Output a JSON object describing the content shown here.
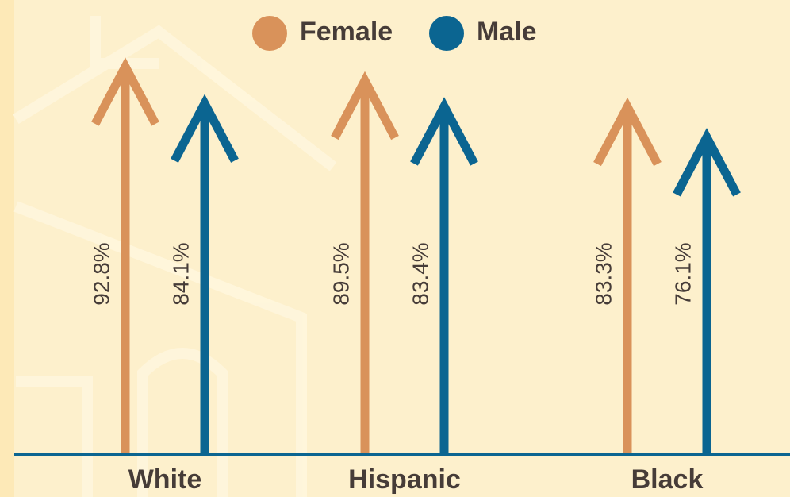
{
  "chart_data": {
    "type": "arrow-bar",
    "categories": [
      "White",
      "Hispanic",
      "Black"
    ],
    "series": [
      {
        "name": "Female",
        "color": "#d9925a",
        "values": [
          92.8,
          89.5,
          83.3
        ],
        "value_labels": [
          "92.8%",
          "89.5%",
          "83.3%"
        ]
      },
      {
        "name": "Male",
        "color": "#0b6591",
        "values": [
          84.1,
          83.4,
          76.1
        ],
        "value_labels": [
          "84.1%",
          "83.4%",
          "76.1%"
        ]
      }
    ],
    "legend": "top"
  }
}
